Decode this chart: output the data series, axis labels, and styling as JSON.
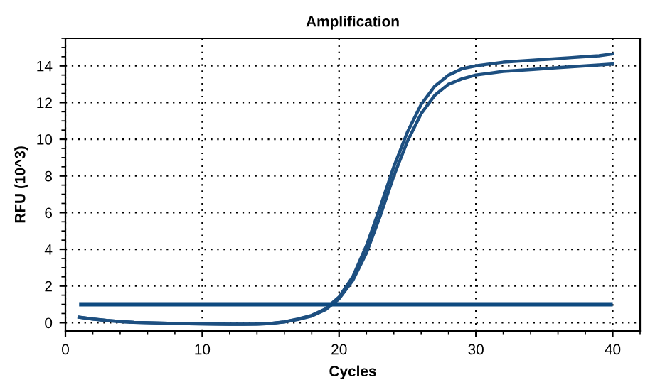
{
  "chart_data": {
    "type": "line",
    "title": "Amplification",
    "xlabel": "Cycles",
    "ylabel": "RFU (10^3)",
    "x": [
      1,
      2,
      3,
      4,
      5,
      6,
      7,
      8,
      9,
      10,
      11,
      12,
      13,
      14,
      15,
      16,
      17,
      18,
      19,
      20,
      21,
      22,
      23,
      24,
      25,
      26,
      27,
      28,
      29,
      30,
      31,
      32,
      33,
      34,
      35,
      36,
      37,
      38,
      39,
      40
    ],
    "series": [
      {
        "color": "#1d4f80",
        "values": [
          0.3,
          0.2,
          0.12,
          0.06,
          0.02,
          0,
          -0.02,
          -0.04,
          -0.05,
          -0.06,
          -0.07,
          -0.08,
          -0.08,
          -0.07,
          -0.04,
          0.05,
          0.2,
          0.4,
          0.75,
          1.4,
          2.5,
          4.2,
          6.3,
          8.5,
          10.4,
          11.9,
          12.9,
          13.5,
          13.85,
          14.0,
          14.1,
          14.2,
          14.25,
          14.3,
          14.35,
          14.4,
          14.45,
          14.5,
          14.55,
          14.65
        ]
      },
      {
        "color": "#1d4f80",
        "values": [
          0.3,
          0.2,
          0.12,
          0.06,
          0.02,
          0,
          -0.02,
          -0.04,
          -0.05,
          -0.06,
          -0.07,
          -0.08,
          -0.08,
          -0.07,
          -0.04,
          0.04,
          0.18,
          0.36,
          0.7,
          1.3,
          2.3,
          3.8,
          5.8,
          8.0,
          9.9,
          11.4,
          12.4,
          13.0,
          13.3,
          13.5,
          13.6,
          13.7,
          13.75,
          13.8,
          13.85,
          13.9,
          13.95,
          14.0,
          14.05,
          14.1
        ]
      }
    ],
    "ref_lines": [
      {
        "axis": "y",
        "value": 1,
        "color": "#0e4a80"
      }
    ],
    "xlim": [
      0,
      42
    ],
    "xticks": [
      0,
      10,
      20,
      30,
      40
    ],
    "ylim": [
      -0.45,
      15.5
    ],
    "yticks": [
      0,
      2,
      4,
      6,
      8,
      10,
      12,
      14
    ],
    "grid": true,
    "legend": false,
    "marker": "none",
    "line_style": "solid"
  }
}
